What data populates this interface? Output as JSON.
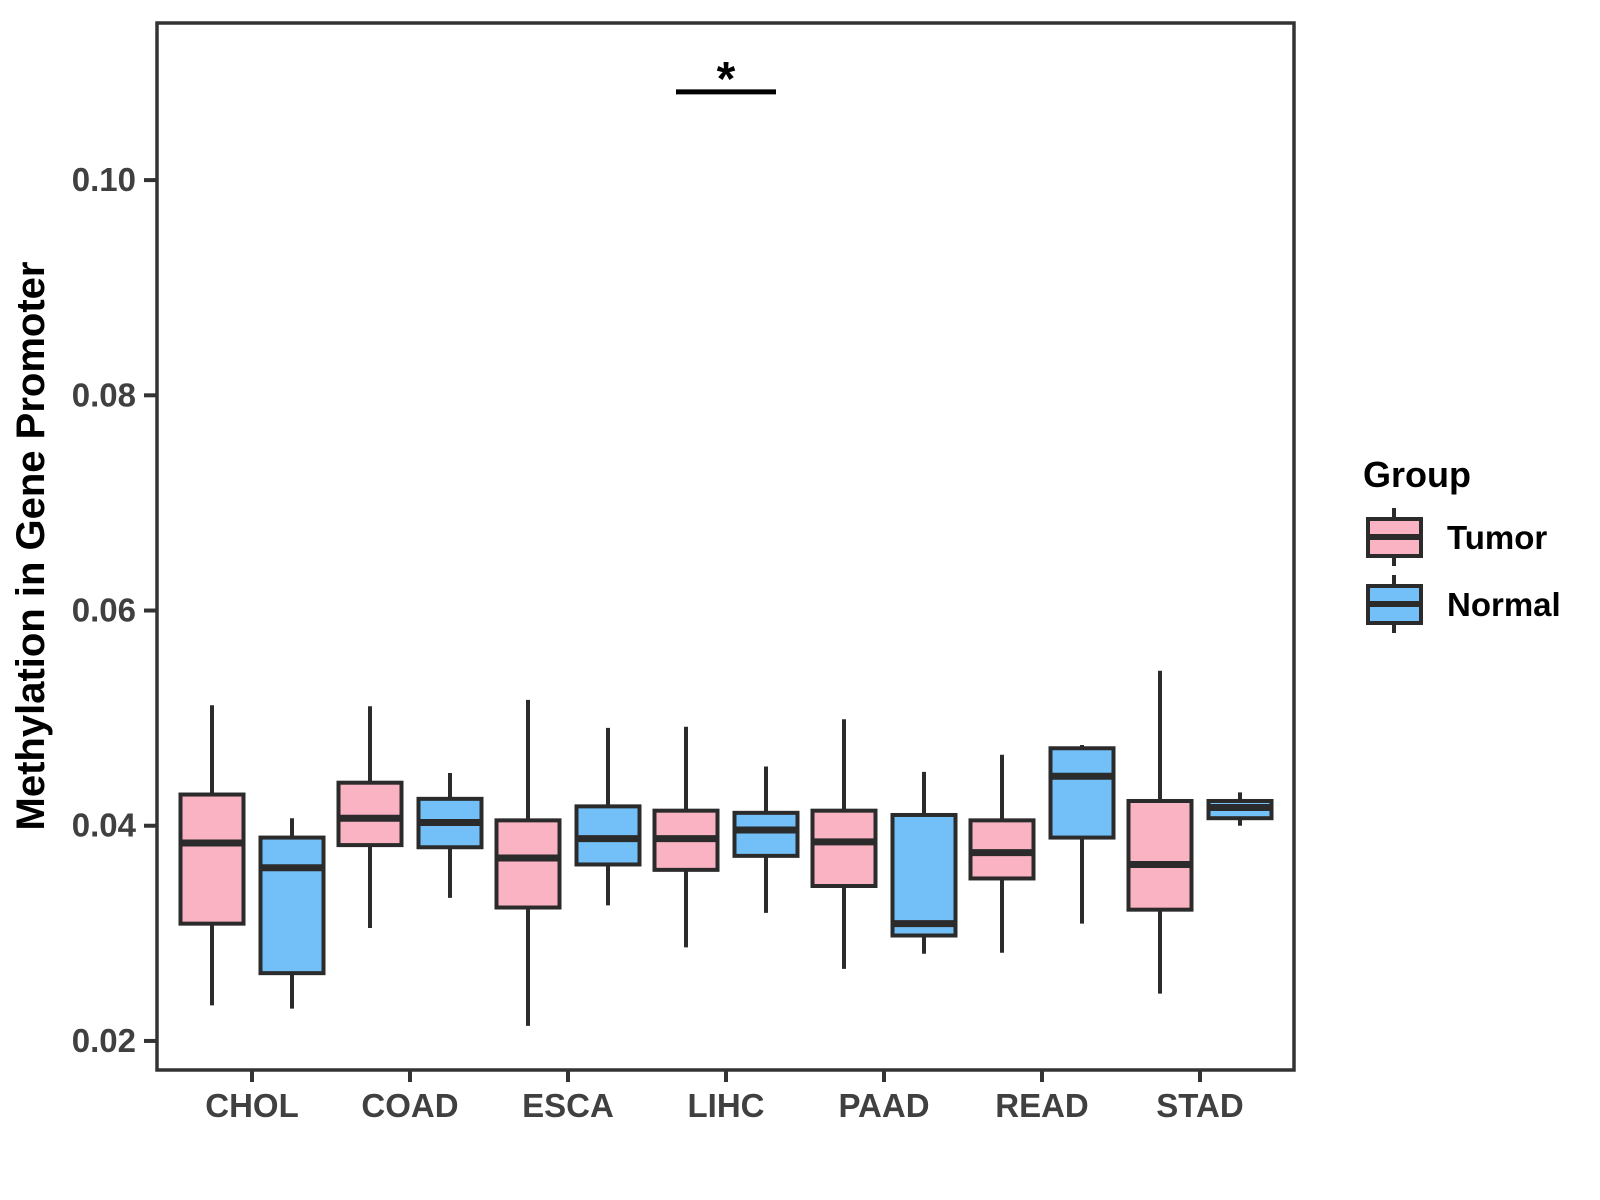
{
  "figure": {
    "y_axis_title": "Methylation in Gene Promoter",
    "legend": {
      "title": "Group",
      "position": "right",
      "items": [
        {
          "label": "Tumor",
          "color": "#FAB3C3"
        },
        {
          "label": "Normal",
          "color": "#73BFF7"
        }
      ]
    }
  },
  "chart_data": {
    "type": "grouped_boxplot",
    "title": "",
    "xlabel": "",
    "ylabel": "Methylation in Gene Promoter",
    "categories": [
      "CHOL",
      "COAD",
      "ESCA",
      "LIHC",
      "PAAD",
      "READ",
      "STAD"
    ],
    "y_ticks": [
      0.02,
      0.04,
      0.06,
      0.08,
      0.1
    ],
    "y_tick_labels": [
      "0.02",
      "0.04",
      "0.06",
      "0.08",
      "0.10"
    ],
    "ylim": [
      0.0173,
      0.1146
    ],
    "grid": false,
    "legend_position": "right",
    "series": [
      {
        "name": "Tumor",
        "color": "#FAB3C3",
        "boxes": [
          {
            "cat": "CHOL",
            "low": 0.0233,
            "q1": 0.0309,
            "median": 0.0384,
            "q3": 0.0429,
            "high": 0.0512
          },
          {
            "cat": "COAD",
            "low": 0.0305,
            "q1": 0.0382,
            "median": 0.0407,
            "q3": 0.044,
            "high": 0.0511
          },
          {
            "cat": "ESCA",
            "low": 0.0214,
            "q1": 0.0324,
            "median": 0.037,
            "q3": 0.0405,
            "high": 0.0517
          },
          {
            "cat": "LIHC",
            "low": 0.0287,
            "q1": 0.0359,
            "median": 0.0388,
            "q3": 0.0414,
            "high": 0.0492
          },
          {
            "cat": "PAAD",
            "low": 0.0267,
            "q1": 0.0344,
            "median": 0.0385,
            "q3": 0.0414,
            "high": 0.0499
          },
          {
            "cat": "READ",
            "low": 0.0282,
            "q1": 0.0351,
            "median": 0.0375,
            "q3": 0.0405,
            "high": 0.0466
          },
          {
            "cat": "STAD",
            "low": 0.0244,
            "q1": 0.0322,
            "median": 0.0364,
            "q3": 0.0423,
            "high": 0.0544
          }
        ]
      },
      {
        "name": "Normal",
        "color": "#73BFF7",
        "boxes": [
          {
            "cat": "CHOL",
            "low": 0.023,
            "q1": 0.0263,
            "median": 0.0361,
            "q3": 0.0389,
            "high": 0.0407
          },
          {
            "cat": "COAD",
            "low": 0.0333,
            "q1": 0.038,
            "median": 0.0403,
            "q3": 0.0425,
            "high": 0.0449
          },
          {
            "cat": "ESCA",
            "low": 0.0326,
            "q1": 0.0364,
            "median": 0.0388,
            "q3": 0.0418,
            "high": 0.0491
          },
          {
            "cat": "LIHC",
            "low": 0.0319,
            "q1": 0.0372,
            "median": 0.0396,
            "q3": 0.0412,
            "high": 0.0455
          },
          {
            "cat": "PAAD",
            "low": 0.0281,
            "q1": 0.0298,
            "median": 0.0309,
            "q3": 0.041,
            "high": 0.045
          },
          {
            "cat": "READ",
            "low": 0.0309,
            "q1": 0.0389,
            "median": 0.0446,
            "q3": 0.0472,
            "high": 0.0475
          },
          {
            "cat": "STAD",
            "low": 0.04,
            "q1": 0.0407,
            "median": 0.0417,
            "q3": 0.0423,
            "high": 0.0431
          }
        ]
      }
    ],
    "annotations": [
      {
        "label": "*",
        "category": "LIHC",
        "y": 0.1082
      }
    ],
    "styles": {
      "box_border": "#2b2b2b",
      "panel_border": "#333333",
      "axis_text": "#404040",
      "annotation_color": "#000000",
      "title_color": "#000000",
      "background": "#ffffff"
    }
  }
}
